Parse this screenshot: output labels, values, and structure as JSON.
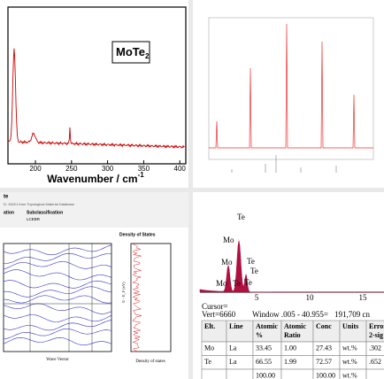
{
  "raman": {
    "formula": [
      "MoTe",
      "2"
    ],
    "xticks": [
      "200",
      "250",
      "300",
      "350",
      "400"
    ],
    "xlabel": [
      "Wavenumber / cm",
      "-1"
    ]
  },
  "bands": {
    "panel_title": "te",
    "source": "D: 15421 from Topological Material Database",
    "col1": "ation",
    "col2": "Subclassification",
    "class": "LCEBR",
    "dos_title": "Density of States",
    "xlabel": "Wave Vector",
    "dos_xlabel": "Density of states",
    "ylabel": "E - E_F (eV)"
  },
  "eds": {
    "peaks": [
      "Te",
      "Mo",
      "Mo",
      "Te",
      "Te",
      "Te",
      "Mo",
      "Te"
    ],
    "xticks": [
      "5",
      "10",
      "15"
    ],
    "cursor": "Cursor=",
    "vert": "Vert=6660",
    "window": "Window .005 - 40.955=",
    "counts": "191,709 cn",
    "table": {
      "header": [
        "Elt.",
        "Line",
        "Atomic %",
        "Atomic Ratio",
        "Conc",
        "Units",
        "Error 2-sig"
      ],
      "rows": [
        [
          "Mo",
          "La",
          "33.45",
          "1.00",
          "27.43",
          "wt.%",
          ".302"
        ],
        [
          "Te",
          "La",
          "66.55",
          "1.99",
          "72.57",
          "wt.%",
          ".652"
        ],
        [
          null,
          null,
          "100.00",
          null,
          "100.00",
          "wt.%",
          null
        ]
      ]
    }
  }
}
